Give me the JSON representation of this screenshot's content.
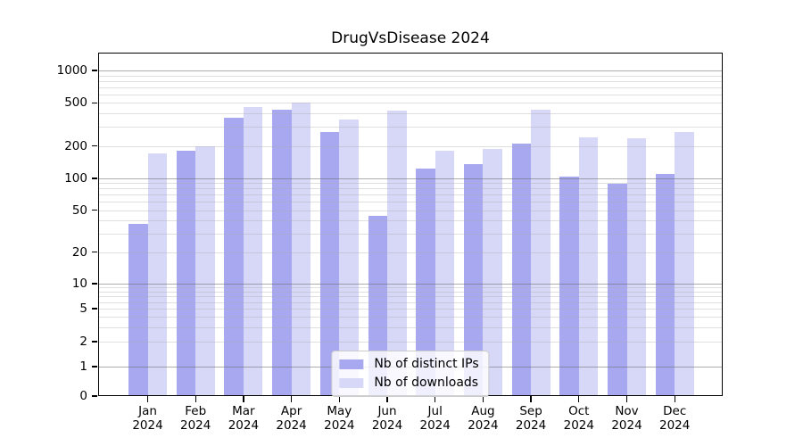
{
  "figure": {
    "title": "DrugVsDisease 2024"
  },
  "chart_data": {
    "type": "bar",
    "title": "DrugVsDisease 2024",
    "xlabel": "",
    "ylabel": "",
    "categories": [
      "Jan 2024",
      "Feb 2024",
      "Mar 2024",
      "Apr 2024",
      "May 2024",
      "Jun 2024",
      "Jul 2024",
      "Aug 2024",
      "Sep 2024",
      "Oct 2024",
      "Nov 2024",
      "Dec 2024"
    ],
    "month_labels": [
      "Jan",
      "Feb",
      "Mar",
      "Apr",
      "May",
      "Jun",
      "Jul",
      "Aug",
      "Sep",
      "Oct",
      "Nov",
      "Dec"
    ],
    "year_label": "2024",
    "series": [
      {
        "name": "Nb of distinct IPs",
        "color": "#a8a8f0",
        "values": [
          37,
          180,
          365,
          435,
          270,
          44,
          124,
          135,
          211,
          104,
          89,
          111
        ]
      },
      {
        "name": "Nb of downloads",
        "color": "#d7d7f7",
        "values": [
          170,
          197,
          455,
          500,
          350,
          425,
          180,
          188,
          430,
          238,
          237,
          268
        ]
      }
    ],
    "y_axis": {
      "scale": "log-with-zero-baseline",
      "tick_values": [
        0,
        1,
        2,
        5,
        10,
        20,
        50,
        100,
        200,
        500,
        1000
      ],
      "tick_labels": [
        "0",
        "1",
        "2",
        "5",
        "10",
        "20",
        "50",
        "100",
        "200",
        "500",
        "1000"
      ],
      "ylim": [
        0,
        1400
      ],
      "grid": "horizontal major + minor"
    },
    "legend": {
      "position": "bottom-center",
      "entries": [
        "Nb of distinct IPs",
        "Nb of downloads"
      ]
    },
    "colors": {
      "distinct_ips": "#a8a8f0",
      "downloads": "#d7d7f7",
      "grid_major": "#a9a9a9",
      "grid_minor": "#e4e4e4",
      "frame": "#000000"
    }
  }
}
